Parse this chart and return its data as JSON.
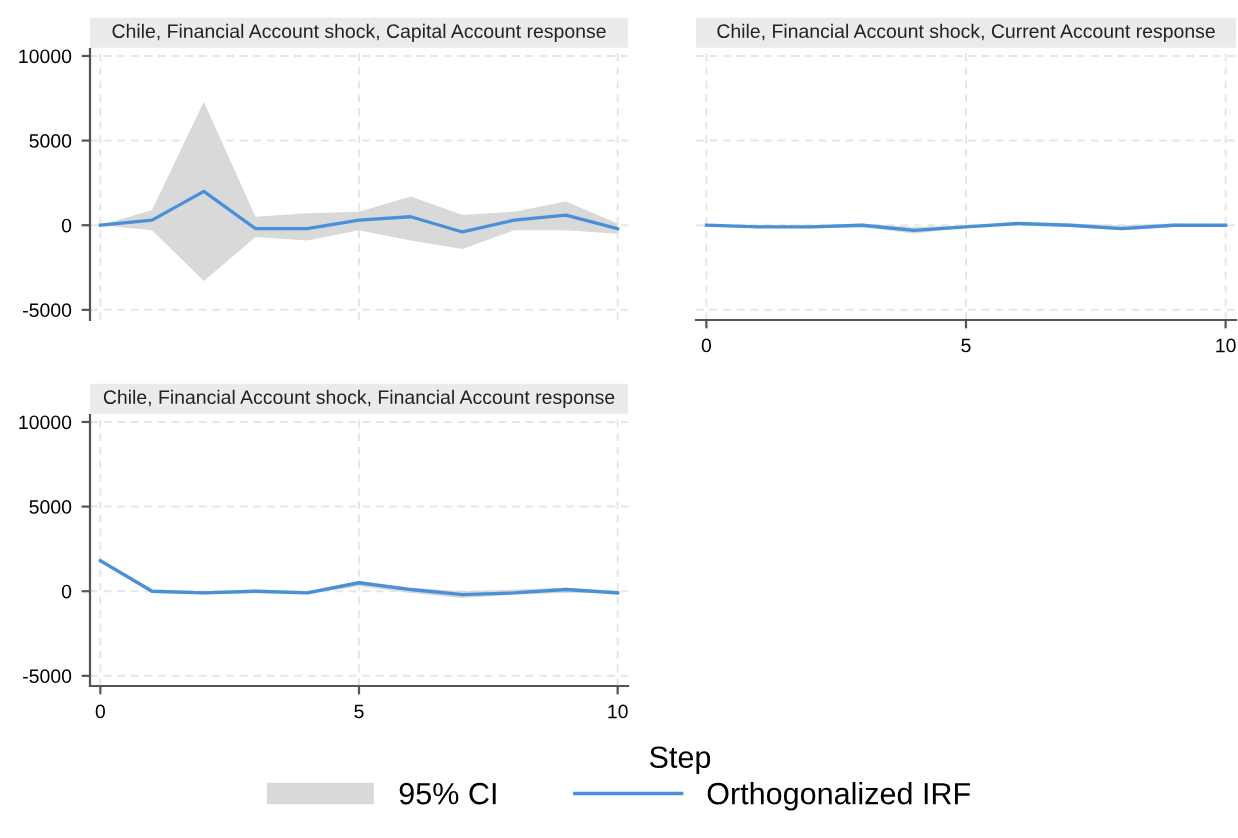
{
  "chart_data": [
    {
      "type": "line",
      "title": "Chile, Financial Account shock, Capital Account response",
      "x": [
        0,
        1,
        2,
        3,
        4,
        5,
        6,
        7,
        8,
        9,
        10
      ],
      "xlim": [
        -0.2,
        10.2
      ],
      "xticks": [
        0,
        5,
        10
      ],
      "ylim": [
        -5600,
        10400
      ],
      "yticks": [
        -5000,
        0,
        5000,
        10000
      ],
      "grid": true,
      "tick_labels": "y",
      "series": [
        {
          "color": "#4a90d9",
          "values": [
            0,
            300,
            2000,
            -200,
            -200,
            300,
            500,
            -400,
            300,
            600,
            -200
          ],
          "lower": [
            0,
            -300,
            -3300,
            -700,
            -900,
            -300,
            -900,
            -1400,
            -300,
            -300,
            -500
          ],
          "upper": [
            0,
            900,
            7300,
            500,
            700,
            800,
            1700,
            600,
            800,
            1400,
            100
          ]
        }
      ]
    },
    {
      "type": "line",
      "title": "Chile, Financial Account shock, Current Account response",
      "x": [
        0,
        1,
        2,
        3,
        4,
        5,
        6,
        7,
        8,
        9,
        10
      ],
      "xlim": [
        -0.2,
        10.2
      ],
      "xticks": [
        0,
        5,
        10
      ],
      "ylim": [
        -5600,
        10400
      ],
      "yticks": [
        -5000,
        0,
        5000,
        10000
      ],
      "grid": true,
      "tick_labels": "x",
      "series": [
        {
          "color": "#4a90d9",
          "values": [
            0,
            -100,
            -100,
            0,
            -300,
            -100,
            100,
            0,
            -200,
            0,
            0
          ],
          "lower": [
            0,
            -100,
            -200,
            -100,
            -500,
            -100,
            0,
            -100,
            -300,
            -100,
            0
          ],
          "upper": [
            0,
            0,
            0,
            100,
            -100,
            0,
            100,
            100,
            0,
            100,
            0
          ]
        }
      ]
    },
    {
      "type": "line",
      "title": "Chile, Financial Account shock, Financial Account response",
      "xlabel": "Step",
      "x": [
        0,
        1,
        2,
        3,
        4,
        5,
        6,
        7,
        8,
        9,
        10
      ],
      "xlim": [
        -0.2,
        10.2
      ],
      "xticks": [
        0,
        5,
        10
      ],
      "ylim": [
        -5600,
        10400
      ],
      "yticks": [
        -5000,
        0,
        5000,
        10000
      ],
      "grid": true,
      "legend": "bottom",
      "annotations": [
        "95% CI"
      ],
      "series": [
        {
          "name": "Orthogonalized IRF",
          "color": "#4a90d9",
          "values": [
            1800,
            0,
            -100,
            0,
            -100,
            500,
            100,
            -200,
            -100,
            100,
            -100
          ],
          "lower": [
            1700,
            -100,
            -200,
            -100,
            -200,
            300,
            -100,
            -400,
            -200,
            -100,
            -100
          ],
          "upper": [
            1900,
            100,
            0,
            100,
            0,
            600,
            200,
            0,
            100,
            200,
            0
          ]
        }
      ]
    }
  ]
}
